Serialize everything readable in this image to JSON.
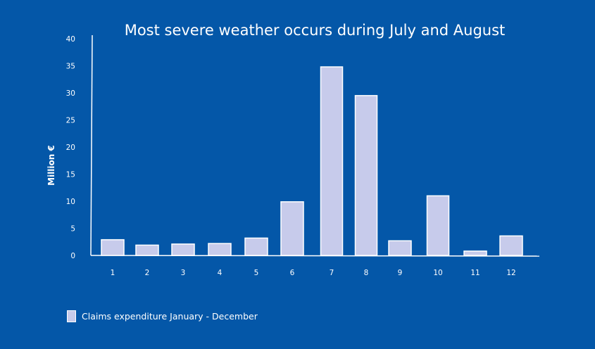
{
  "chart_data": {
    "type": "bar",
    "title": "Most severe weather occurs during July and August",
    "xlabel": "",
    "ylabel": "Million €",
    "ylim": [
      0,
      40
    ],
    "yticks": [
      0,
      5,
      10,
      15,
      20,
      25,
      30,
      35,
      40
    ],
    "categories": [
      "1",
      "2",
      "3",
      "4",
      "5",
      "6",
      "7",
      "8",
      "9",
      "10",
      "11",
      "12"
    ],
    "series": [
      {
        "name": "Claims expenditure January - December",
        "values": [
          2.9,
          1.9,
          2.1,
          2.2,
          3.2,
          9.9,
          34.8,
          29.5,
          2.7,
          11.0,
          0.8,
          3.6
        ]
      }
    ],
    "grid": false,
    "legend_position": "bottom-left",
    "colors": {
      "background": "#0457a8",
      "bar": "#c7cbeb",
      "outline": "#ffffff"
    }
  }
}
